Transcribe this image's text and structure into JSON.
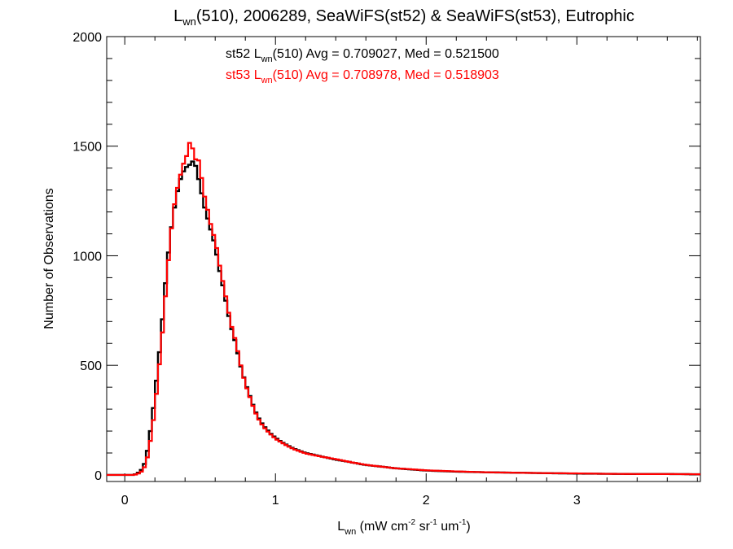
{
  "chart_data": {
    "type": "line",
    "title": {
      "pre": "L",
      "sub": "wn",
      "post": "(510), 2006289, SeaWiFS(st52) & SeaWiFS(st53), Eutrophic"
    },
    "xlabel": {
      "l": "L",
      "sub": "wn",
      "a": " (mW cm",
      "sup1": "-2",
      "b": " sr",
      "sup2": "-1",
      "c": " um",
      "sup3": "-1",
      "d": ")"
    },
    "ylabel": "Number of Observations",
    "xlim": [
      -0.12,
      3.82
    ],
    "ylim": [
      -30,
      2000
    ],
    "xticks": [
      {
        "v": 0,
        "label": "0"
      },
      {
        "v": 1,
        "label": "1"
      },
      {
        "v": 2,
        "label": "2"
      },
      {
        "v": 3,
        "label": "3"
      }
    ],
    "yticks": [
      {
        "v": 0,
        "label": "0"
      },
      {
        "v": 500,
        "label": "500"
      },
      {
        "v": 1000,
        "label": "1000"
      },
      {
        "v": 1500,
        "label": "1500"
      },
      {
        "v": 2000,
        "label": "2000"
      }
    ],
    "grid": false,
    "series": [
      {
        "name": "st52",
        "color": "#000000",
        "annotation": {
          "pre": "st52 L",
          "sub": "wn",
          "post": "(510) Avg = 0.709027, Med = 0.521500"
        },
        "bin_width": 0.02,
        "points": [
          [
            -0.12,
            0
          ],
          [
            0,
            0
          ],
          [
            0.06,
            0
          ],
          [
            0.08,
            5
          ],
          [
            0.1,
            15
          ],
          [
            0.12,
            30
          ],
          [
            0.14,
            70
          ],
          [
            0.16,
            150
          ],
          [
            0.18,
            250
          ],
          [
            0.2,
            360
          ],
          [
            0.22,
            500
          ],
          [
            0.24,
            620
          ],
          [
            0.26,
            800
          ],
          [
            0.28,
            950
          ],
          [
            0.3,
            1080
          ],
          [
            0.32,
            1180
          ],
          [
            0.34,
            1260
          ],
          [
            0.36,
            1330
          ],
          [
            0.38,
            1370
          ],
          [
            0.4,
            1400
          ],
          [
            0.42,
            1410
          ],
          [
            0.44,
            1420
          ],
          [
            0.46,
            1440
          ],
          [
            0.48,
            1380
          ],
          [
            0.5,
            1320
          ],
          [
            0.52,
            1250
          ],
          [
            0.54,
            1190
          ],
          [
            0.56,
            1150
          ],
          [
            0.58,
            1090
          ],
          [
            0.6,
            1050
          ],
          [
            0.62,
            960
          ],
          [
            0.64,
            900
          ],
          [
            0.66,
            830
          ],
          [
            0.68,
            760
          ],
          [
            0.7,
            690
          ],
          [
            0.72,
            640
          ],
          [
            0.74,
            590
          ],
          [
            0.76,
            520
          ],
          [
            0.78,
            470
          ],
          [
            0.8,
            420
          ],
          [
            0.82,
            380
          ],
          [
            0.84,
            340
          ],
          [
            0.86,
            300
          ],
          [
            0.88,
            270
          ],
          [
            0.9,
            245
          ],
          [
            0.92,
            225
          ],
          [
            0.94,
            210
          ],
          [
            0.96,
            195
          ],
          [
            0.98,
            180
          ],
          [
            1.0,
            170
          ],
          [
            1.04,
            150
          ],
          [
            1.08,
            135
          ],
          [
            1.12,
            120
          ],
          [
            1.16,
            110
          ],
          [
            1.2,
            100
          ],
          [
            1.3,
            85
          ],
          [
            1.4,
            70
          ],
          [
            1.5,
            58
          ],
          [
            1.6,
            45
          ],
          [
            1.7,
            38
          ],
          [
            1.8,
            30
          ],
          [
            1.9,
            25
          ],
          [
            2.0,
            20
          ],
          [
            2.2,
            15
          ],
          [
            2.4,
            12
          ],
          [
            2.6,
            10
          ],
          [
            2.8,
            8
          ],
          [
            3.0,
            6
          ],
          [
            3.2,
            5
          ],
          [
            3.4,
            4
          ],
          [
            3.6,
            4
          ],
          [
            3.82,
            3
          ]
        ]
      },
      {
        "name": "st53",
        "color": "#ff0000",
        "annotation": {
          "pre": "st53 L",
          "sub": "wn",
          "post": "(510) Avg = 0.708978, Med = 0.518903"
        },
        "bin_width": 0.02,
        "points": [
          [
            -0.12,
            0
          ],
          [
            0,
            0
          ],
          [
            0.06,
            0
          ],
          [
            0.08,
            3
          ],
          [
            0.1,
            10
          ],
          [
            0.12,
            20
          ],
          [
            0.14,
            50
          ],
          [
            0.16,
            110
          ],
          [
            0.18,
            200
          ],
          [
            0.2,
            300
          ],
          [
            0.22,
            440
          ],
          [
            0.24,
            570
          ],
          [
            0.26,
            730
          ],
          [
            0.28,
            900
          ],
          [
            0.3,
            1060
          ],
          [
            0.32,
            1190
          ],
          [
            0.34,
            1280
          ],
          [
            0.36,
            1340
          ],
          [
            0.38,
            1400
          ],
          [
            0.4,
            1440
          ],
          [
            0.42,
            1470
          ],
          [
            0.44,
            1560
          ],
          [
            0.46,
            1420
          ],
          [
            0.48,
            1460
          ],
          [
            0.5,
            1410
          ],
          [
            0.52,
            1300
          ],
          [
            0.54,
            1240
          ],
          [
            0.56,
            1180
          ],
          [
            0.58,
            1110
          ],
          [
            0.6,
            1080
          ],
          [
            0.62,
            990
          ],
          [
            0.64,
            920
          ],
          [
            0.66,
            850
          ],
          [
            0.68,
            780
          ],
          [
            0.7,
            700
          ],
          [
            0.72,
            650
          ],
          [
            0.74,
            600
          ],
          [
            0.76,
            530
          ],
          [
            0.78,
            470
          ],
          [
            0.8,
            415
          ],
          [
            0.82,
            375
          ],
          [
            0.84,
            335
          ],
          [
            0.86,
            295
          ],
          [
            0.88,
            265
          ],
          [
            0.9,
            240
          ],
          [
            0.92,
            220
          ],
          [
            0.94,
            205
          ],
          [
            0.96,
            190
          ],
          [
            0.98,
            178
          ],
          [
            1.0,
            165
          ],
          [
            1.04,
            148
          ],
          [
            1.08,
            132
          ],
          [
            1.12,
            118
          ],
          [
            1.16,
            108
          ],
          [
            1.2,
            98
          ],
          [
            1.3,
            84
          ],
          [
            1.4,
            72
          ],
          [
            1.5,
            58
          ],
          [
            1.6,
            46
          ],
          [
            1.7,
            38
          ],
          [
            1.8,
            30
          ],
          [
            1.9,
            26
          ],
          [
            2.0,
            21
          ],
          [
            2.2,
            16
          ],
          [
            2.4,
            12
          ],
          [
            2.6,
            10
          ],
          [
            2.8,
            8
          ],
          [
            3.0,
            7
          ],
          [
            3.2,
            5
          ],
          [
            3.4,
            4
          ],
          [
            3.6,
            4
          ],
          [
            3.82,
            3
          ]
        ]
      }
    ]
  }
}
